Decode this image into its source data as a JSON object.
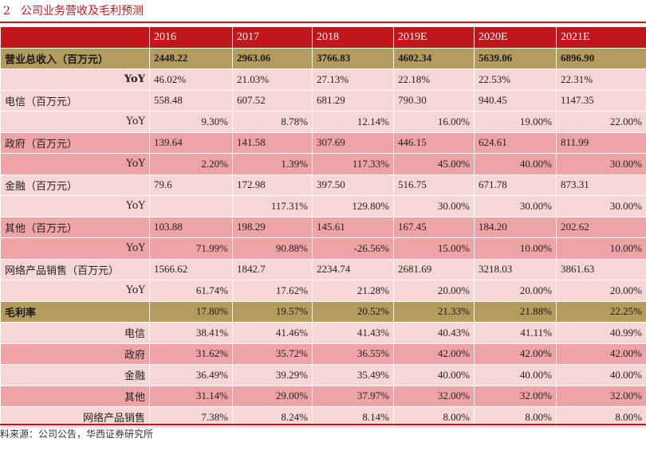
{
  "title": {
    "number": "2",
    "text": "公司业务营收及毛利预测"
  },
  "columns": [
    "",
    "2016",
    "2017",
    "2018",
    "2019E",
    "2020E",
    "2021E"
  ],
  "rows": [
    {
      "label": "营业总收入（百万元）",
      "style": "gold",
      "align": "left",
      "cells": [
        "2448.22",
        "2963.06",
        "3766.83",
        "4602.34",
        "5639.06",
        "6896.90"
      ]
    },
    {
      "label": "YoY",
      "style": "light",
      "align": "right",
      "bold": true,
      "cells": [
        "46.02%",
        "21.03%",
        "27.13%",
        "22.18%",
        "22.53%",
        "22.31%"
      ]
    },
    {
      "label": "电信（百万元）",
      "style": "light",
      "align": "left",
      "cells": [
        "558.48",
        "607.52",
        "681.29",
        "790.30",
        "940.45",
        "1147.35"
      ]
    },
    {
      "label": "YoY",
      "style": "light",
      "align": "right",
      "cells": [
        "9.30%",
        "8.78%",
        "12.14%",
        "16.00%",
        "19.00%",
        "22.00%"
      ]
    },
    {
      "label": "政府（百万元）",
      "style": "mid",
      "align": "left",
      "cells": [
        "139.64",
        "141.58",
        "307.69",
        "446.15",
        "624.61",
        "811.99"
      ]
    },
    {
      "label": "YoY",
      "style": "mid",
      "align": "right",
      "cells": [
        "2.20%",
        "1.39%",
        "117.33%",
        "45.00%",
        "40.00%",
        "30.00%"
      ]
    },
    {
      "label": "金融（百万元）",
      "style": "light",
      "align": "left",
      "cells": [
        "79.6",
        "172.98",
        "397.50",
        "516.75",
        "671.78",
        "873.31"
      ]
    },
    {
      "label": "YoY",
      "style": "light",
      "align": "right",
      "cells": [
        "",
        "117.31%",
        "129.80%",
        "30.00%",
        "30.00%",
        "30.00%"
      ]
    },
    {
      "label": "其他（百万元）",
      "style": "mid",
      "align": "left",
      "cells": [
        "103.88",
        "198.29",
        "145.61",
        "167.45",
        "184.20",
        "202.62"
      ]
    },
    {
      "label": "YoY",
      "style": "mid",
      "align": "right",
      "cells": [
        "71.99%",
        "90.88%",
        "-26.56%",
        "15.00%",
        "10.00%",
        "10.00%"
      ]
    },
    {
      "label": "网络产品销售（百万元）",
      "style": "light",
      "align": "left",
      "cells": [
        "1566.62",
        "1842.7",
        "2234.74",
        "2681.69",
        "3218.03",
        "3861.63"
      ]
    },
    {
      "label": "YoY",
      "style": "light",
      "align": "right",
      "cells": [
        "61.74%",
        "17.62%",
        "21.28%",
        "20.00%",
        "20.00%",
        "20.00%"
      ]
    },
    {
      "label": "毛利率",
      "style": "gold",
      "align": "left",
      "cells": [
        "17.80%",
        "19.57%",
        "20.52%",
        "21.33%",
        "21.88%",
        "22.25%"
      ]
    },
    {
      "label": "电信",
      "style": "light",
      "align": "right",
      "cells": [
        "38.41%",
        "41.46%",
        "41.43%",
        "40.43%",
        "41.11%",
        "40.99%"
      ]
    },
    {
      "label": "政府",
      "style": "mid",
      "align": "right",
      "cells": [
        "31.62%",
        "35.72%",
        "36.55%",
        "42.00%",
        "42.00%",
        "42.00%"
      ]
    },
    {
      "label": "金融",
      "style": "light",
      "align": "right",
      "cells": [
        "36.49%",
        "39.29%",
        "35.49%",
        "40.00%",
        "40.00%",
        "40.00%"
      ]
    },
    {
      "label": "其他",
      "style": "mid",
      "align": "right",
      "cells": [
        "31.14%",
        "29.00%",
        "37.97%",
        "32.00%",
        "32.00%",
        "32.00%"
      ]
    },
    {
      "label": "网络产品销售",
      "style": "light",
      "align": "right",
      "cells": [
        "7.38%",
        "8.24%",
        "8.14%",
        "8.00%",
        "8.00%",
        "8.00%"
      ]
    }
  ],
  "source": "料来源：公司公告，华西证券研究所",
  "colors": {
    "red": "#c1161c",
    "gold": "#b49b5e",
    "light_pink": "#f7d6d6",
    "mid_pink": "#eea3a7"
  }
}
